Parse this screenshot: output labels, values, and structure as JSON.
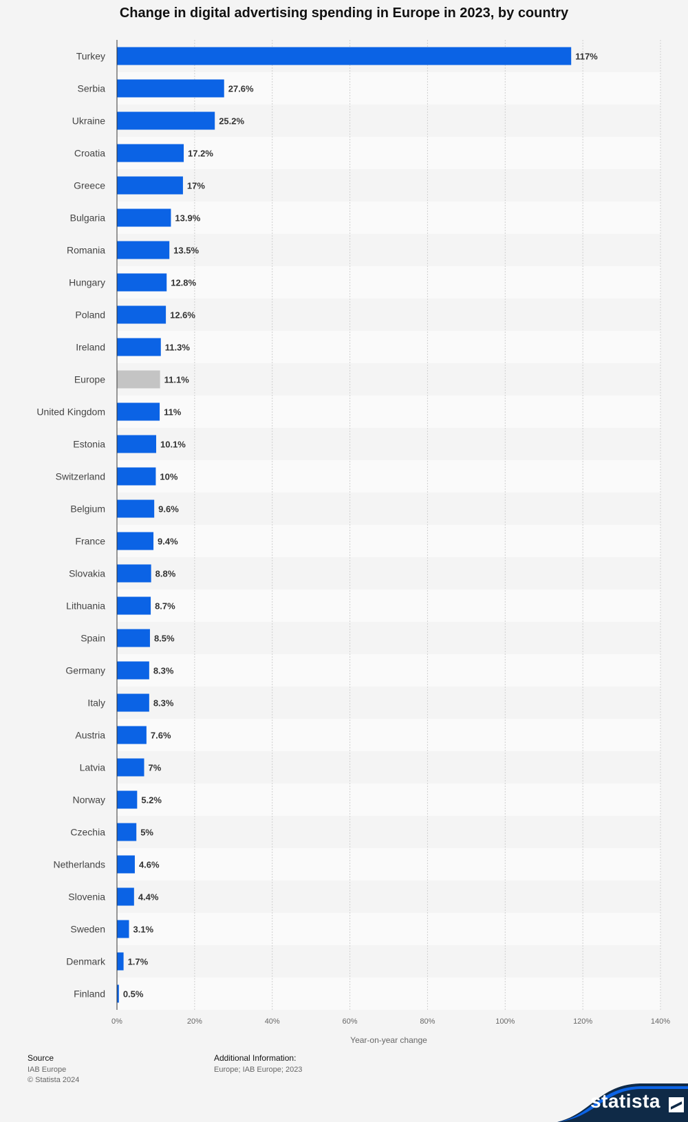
{
  "title": "Change in digital advertising spending in Europe in 2023, by country",
  "chart_data": {
    "type": "bar",
    "orientation": "horizontal",
    "title": "Change in digital advertising spending in Europe in 2023, by country",
    "xlabel": "Year-on-year change",
    "xlim": [
      0,
      140
    ],
    "xticks": [
      "0%",
      "20%",
      "40%",
      "60%",
      "80%",
      "100%",
      "120%",
      "140%"
    ],
    "xtick_values": [
      0,
      20,
      40,
      60,
      80,
      100,
      120,
      140
    ],
    "grid": true,
    "categories": [
      "Turkey",
      "Serbia",
      "Ukraine",
      "Croatia",
      "Greece",
      "Bulgaria",
      "Romania",
      "Hungary",
      "Poland",
      "Ireland",
      "Europe",
      "United Kingdom",
      "Estonia",
      "Switzerland",
      "Belgium",
      "France",
      "Slovakia",
      "Lithuania",
      "Spain",
      "Germany",
      "Italy",
      "Austria",
      "Latvia",
      "Norway",
      "Czechia",
      "Netherlands",
      "Slovenia",
      "Sweden",
      "Denmark",
      "Finland"
    ],
    "values": [
      117,
      27.6,
      25.2,
      17.2,
      17,
      13.9,
      13.5,
      12.8,
      12.6,
      11.3,
      11.1,
      11,
      10.1,
      10,
      9.6,
      9.4,
      8.8,
      8.7,
      8.5,
      8.3,
      8.3,
      7.6,
      7,
      5.2,
      5,
      4.6,
      4.4,
      3.1,
      1.7,
      0.5
    ],
    "value_labels": [
      "117%",
      "27.6%",
      "25.2%",
      "17.2%",
      "17%",
      "13.9%",
      "13.5%",
      "12.8%",
      "12.6%",
      "11.3%",
      "11.1%",
      "11%",
      "10.1%",
      "10%",
      "9.6%",
      "9.4%",
      "8.8%",
      "8.7%",
      "8.5%",
      "8.3%",
      "8.3%",
      "7.6%",
      "7%",
      "5.2%",
      "5%",
      "4.6%",
      "4.4%",
      "3.1%",
      "1.7%",
      "0.5%"
    ],
    "bar_color": "#0b63e5",
    "highlight_category": "Europe",
    "highlight_color": "#c4c4c4"
  },
  "footer": {
    "source_heading": "Source",
    "source_lines": [
      "IAB Europe",
      "© Statista 2024"
    ],
    "info_heading": "Additional Information:",
    "info_lines": [
      "Europe; IAB Europe; 2023"
    ]
  },
  "brand": {
    "name": "statista",
    "color": "#0b63e5",
    "dark_color": "#0f2a47"
  }
}
